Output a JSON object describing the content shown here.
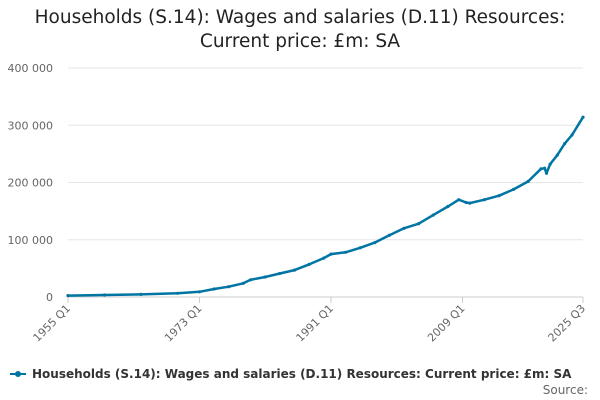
{
  "title_line1": "Households (S.14): Wages and salaries (D.11) Resources:",
  "title_line2": "Current price: £m: SA",
  "legend_label": "Households (S.14): Wages and salaries (D.11) Resources: Current price: £m: SA",
  "source_label": "Source:",
  "series_color": "#0075a3",
  "chart_data": {
    "type": "line",
    "title": "Households (S.14): Wages and salaries (D.11) Resources: Current price: £m: SA",
    "xlabel": "",
    "ylabel": "",
    "x_tick_labels": [
      "1955 Q1",
      "1973 Q1",
      "1991 Q1",
      "2009 Q1",
      "2025 Q3"
    ],
    "y_tick_labels": [
      "0",
      "100 000",
      "200 000",
      "300 000",
      "400 000"
    ],
    "ylim": [
      0,
      400000
    ],
    "xlim": [
      1955.0,
      2025.5
    ],
    "grid": "horizontal",
    "legend": "bottom",
    "series": [
      {
        "name": "Households (S.14): Wages and salaries (D.11) Resources: Current price: £m: SA",
        "x": [
          1955.0,
          1960.0,
          1965.0,
          1970.0,
          1973.0,
          1975.0,
          1977.0,
          1979.0,
          1980.0,
          1982.0,
          1984.0,
          1986.0,
          1988.0,
          1990.0,
          1991.0,
          1993.0,
          1995.0,
          1997.0,
          1999.0,
          2001.0,
          2003.0,
          2005.0,
          2007.0,
          2008.5,
          2009.5,
          2010.0,
          2012.0,
          2014.0,
          2016.0,
          2018.0,
          2019.75,
          2020.25,
          2020.5,
          2021.0,
          2022.0,
          2023.0,
          2024.0,
          2025.5
        ],
        "y": [
          2500,
          3500,
          4500,
          6500,
          9000,
          14000,
          18000,
          24000,
          30000,
          35000,
          41000,
          47000,
          57000,
          68000,
          75000,
          78000,
          86000,
          95000,
          108000,
          120000,
          128000,
          143000,
          158000,
          170000,
          165000,
          164000,
          170000,
          177000,
          188000,
          202000,
          224000,
          225000,
          216000,
          232000,
          248000,
          268000,
          283000,
          314000
        ]
      }
    ]
  }
}
